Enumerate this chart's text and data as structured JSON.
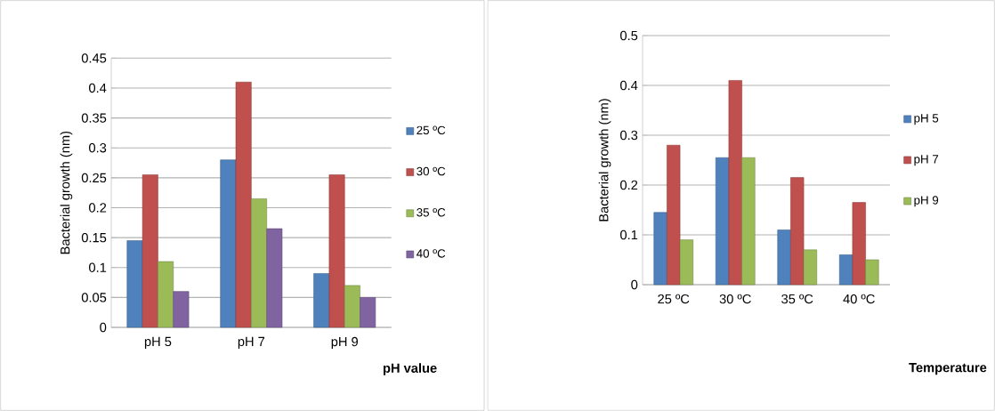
{
  "chart_data": [
    {
      "type": "bar",
      "xlabel": "pH value",
      "ylabel": "Bacterial growth (nm)",
      "categories": [
        "pH 5",
        "pH 7",
        "pH 9"
      ],
      "series": [
        {
          "name": "25 ºC",
          "color": "#4f81bd",
          "values": [
            0.145,
            0.28,
            0.09
          ]
        },
        {
          "name": "30 ºC",
          "color": "#c0504d",
          "values": [
            0.255,
            0.41,
            0.255
          ]
        },
        {
          "name": "35 ºC",
          "color": "#9bbb59",
          "values": [
            0.11,
            0.215,
            0.07
          ]
        },
        {
          "name": "40 ºC",
          "color": "#8064a2",
          "values": [
            0.06,
            0.165,
            0.05
          ]
        }
      ],
      "ylim": [
        0,
        0.45
      ],
      "yticks": [
        0,
        0.05,
        0.1,
        0.15,
        0.2,
        0.25,
        0.3,
        0.35,
        0.4,
        0.45
      ],
      "grid": "y",
      "legend": "right"
    },
    {
      "type": "bar",
      "xlabel": "Temperature",
      "ylabel": "Bacterial growth (nm)",
      "categories": [
        "25 ºC",
        "30 ºC",
        "35 ºC",
        "40 ºC"
      ],
      "series": [
        {
          "name": "pH 5",
          "color": "#4f81bd",
          "values": [
            0.145,
            0.255,
            0.11,
            0.06
          ]
        },
        {
          "name": "pH 7",
          "color": "#c0504d",
          "values": [
            0.28,
            0.41,
            0.215,
            0.165
          ]
        },
        {
          "name": "pH 9",
          "color": "#9bbb59",
          "values": [
            0.09,
            0.255,
            0.07,
            0.05
          ]
        }
      ],
      "ylim": [
        0,
        0.5
      ],
      "yticks": [
        0,
        0.1,
        0.2,
        0.3,
        0.4,
        0.5
      ],
      "grid": "y",
      "legend": "right"
    }
  ]
}
